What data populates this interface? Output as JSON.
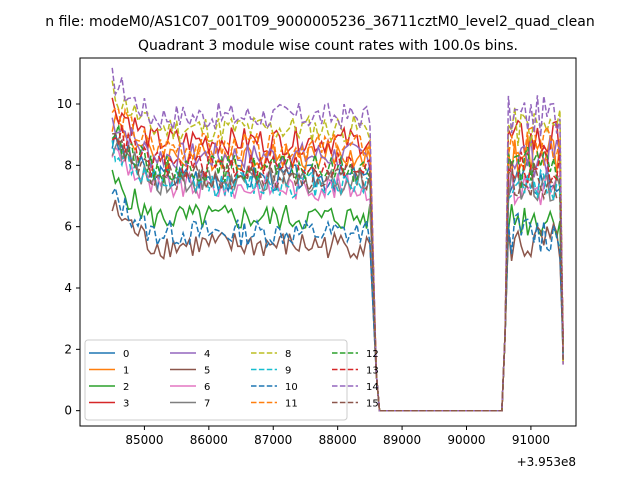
{
  "chart_data": {
    "type": "line",
    "suptitle": "n file: modeM0/AS1C07_001T09_9000005236_36711cztM0_level2_quad_clean",
    "title": "Quadrant 3 module wise count rates with 100.0s bins.",
    "xlabel": "",
    "ylabel": "",
    "x_offset_label": "+3.953e8",
    "xlim": [
      84000,
      91700
    ],
    "ylim": [
      -0.5,
      11.5
    ],
    "xticks": [
      85000,
      86000,
      87000,
      88000,
      89000,
      90000,
      91000
    ],
    "yticks": [
      0,
      2,
      4,
      6,
      8,
      10
    ],
    "legend_position": "lower-left",
    "legend_columns": 4,
    "segments": [
      {
        "x_start": 84500,
        "x_end": 88500,
        "step": 50
      },
      {
        "x_start": 90600,
        "x_end": 91500,
        "step": 50
      }
    ],
    "gap": {
      "start": 88600,
      "end": 90550,
      "value": 0
    },
    "series": [
      {
        "name": "0",
        "color": "#1f77b4",
        "dash": "solid",
        "level": 7.6
      },
      {
        "name": "1",
        "color": "#ff7f0e",
        "dash": "solid",
        "level": 8.3
      },
      {
        "name": "2",
        "color": "#2ca02c",
        "dash": "solid",
        "level": 6.3
      },
      {
        "name": "3",
        "color": "#d62728",
        "dash": "solid",
        "level": 8.8
      },
      {
        "name": "4",
        "color": "#9467bd",
        "dash": "solid",
        "level": 8.3
      },
      {
        "name": "5",
        "color": "#8c564b",
        "dash": "solid",
        "level": 5.4
      },
      {
        "name": "6",
        "color": "#e377c2",
        "dash": "solid",
        "level": 7.3
      },
      {
        "name": "7",
        "color": "#7f7f7f",
        "dash": "solid",
        "level": 7.5
      },
      {
        "name": "8",
        "color": "#bcbd22",
        "dash": "dashed",
        "level": 9.2
      },
      {
        "name": "9",
        "color": "#17becf",
        "dash": "dashed",
        "level": 7.4
      },
      {
        "name": "10",
        "color": "#1f77b4",
        "dash": "dashed",
        "level": 5.8
      },
      {
        "name": "11",
        "color": "#ff7f0e",
        "dash": "dashed",
        "level": 8.6
      },
      {
        "name": "12",
        "color": "#2ca02c",
        "dash": "dashed",
        "level": 7.9
      },
      {
        "name": "13",
        "color": "#d62728",
        "dash": "dashed",
        "level": 8.0
      },
      {
        "name": "14",
        "color": "#9467bd",
        "dash": "dashed",
        "level": 9.6
      },
      {
        "name": "15",
        "color": "#8c564b",
        "dash": "dashed",
        "level": 7.6
      }
    ]
  }
}
